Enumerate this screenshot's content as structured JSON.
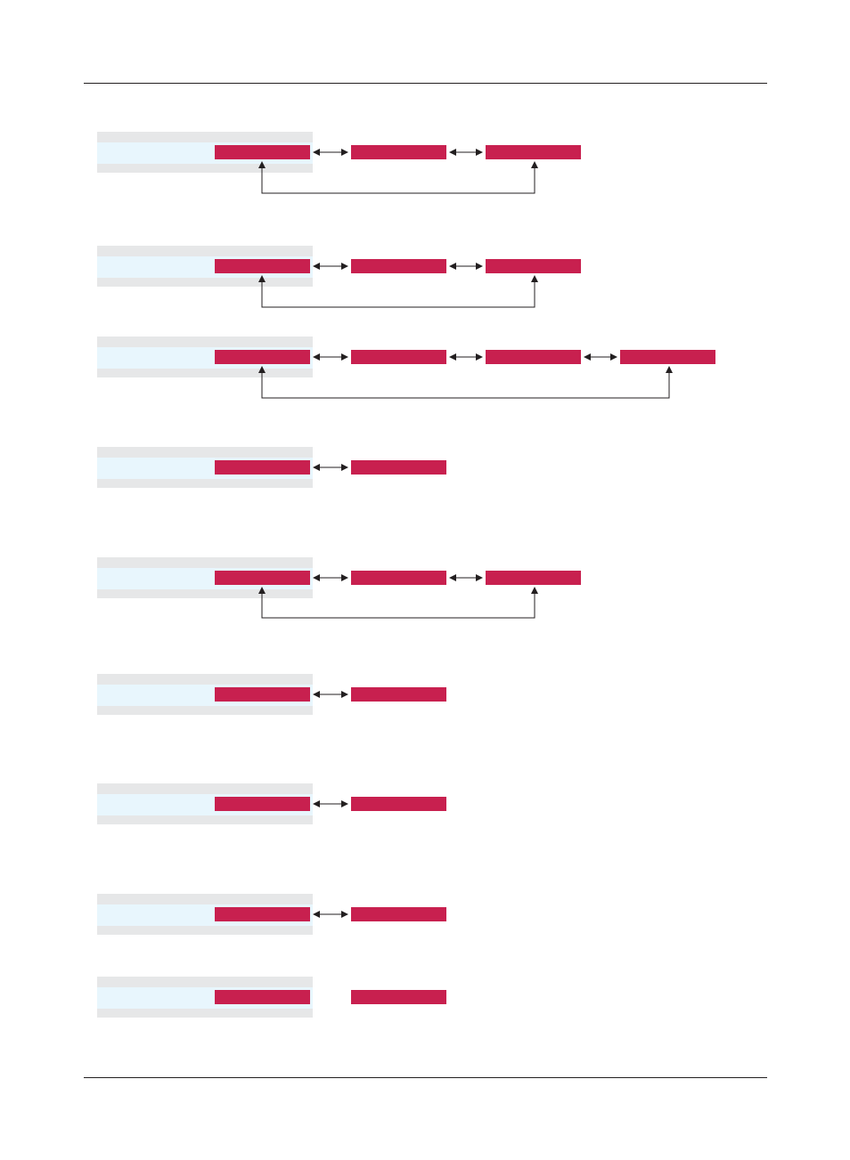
{
  "header": {
    "text": ""
  },
  "footer": {
    "text": ""
  },
  "rows": [
    {
      "panel_label": "",
      "boxes": [
        "",
        "",
        ""
      ],
      "adjacent_links": [
        true,
        true
      ],
      "return_link": true
    },
    {
      "panel_label": "",
      "boxes": [
        "",
        "",
        ""
      ],
      "adjacent_links": [
        true,
        true
      ],
      "return_link": true
    },
    {
      "panel_label": "",
      "boxes": [
        "",
        "",
        "",
        ""
      ],
      "adjacent_links": [
        true,
        true,
        true
      ],
      "return_link": true
    },
    {
      "panel_label": "",
      "boxes": [
        "",
        ""
      ],
      "adjacent_links": [
        true
      ],
      "return_link": false
    },
    {
      "panel_label": "",
      "boxes": [
        "",
        "",
        ""
      ],
      "adjacent_links": [
        true,
        true
      ],
      "return_link": true
    },
    {
      "panel_label": "",
      "boxes": [
        "",
        ""
      ],
      "adjacent_links": [
        true
      ],
      "return_link": false
    },
    {
      "panel_label": "",
      "boxes": [
        "",
        ""
      ],
      "adjacent_links": [
        true
      ],
      "return_link": false
    },
    {
      "panel_label": "",
      "boxes": [
        "",
        ""
      ],
      "adjacent_links": [
        true
      ],
      "return_link": false
    },
    {
      "panel_label": "",
      "boxes": [
        "",
        ""
      ],
      "adjacent_links": [
        false
      ],
      "return_link": false
    }
  ],
  "colors": {
    "box_fill": "#c8204f",
    "panel_band": "#e6e7e8",
    "panel_highlight": "#e8f6fd",
    "connector": "#231f20",
    "rule": "#231f20"
  }
}
